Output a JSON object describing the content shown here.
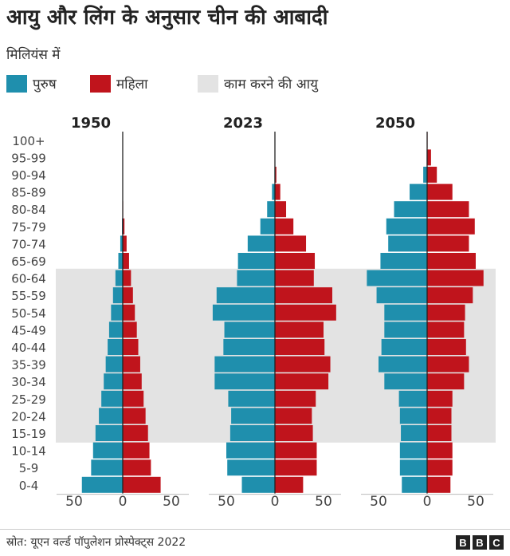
{
  "title": "आयु और लिंग के अनुसार चीन की आबादी",
  "subtitle": "मिलियंस में",
  "legend": [
    {
      "label": "पुरुष",
      "color": "#1f8fad"
    },
    {
      "label": "महिला",
      "color": "#c0141c"
    },
    {
      "label": "काम करने की आयु",
      "color": "#e3e3e3"
    }
  ],
  "source": "स्रोत: यूएन वर्ल्ड पॉपुलेशन प्रोस्पेक्ट्स 2022",
  "logo": [
    "B",
    "B",
    "C"
  ],
  "chart_data": {
    "type": "bar",
    "orientation": "population-pyramid",
    "age_groups": [
      "100+",
      "95-99",
      "90-94",
      "85-89",
      "80-84",
      "75-79",
      "70-74",
      "65-69",
      "60-64",
      "55-59",
      "50-54",
      "45-49",
      "40-44",
      "35-39",
      "30-34",
      "25-29",
      "20-24",
      "15-19",
      "10-14",
      "5-9",
      "0-4"
    ],
    "working_age_band": [
      "15-19",
      "60-64"
    ],
    "xticks": [
      "50",
      "0",
      "50"
    ],
    "panels": [
      {
        "year": "1950",
        "male": [
          0,
          0,
          0,
          0,
          0.2,
          0.8,
          2.5,
          4.5,
          7.5,
          10,
          12,
          14,
          15.5,
          17.5,
          19.5,
          22,
          24.5,
          28,
          30.5,
          32.5,
          42
        ],
        "female": [
          0,
          0,
          0,
          0.1,
          0.5,
          1.8,
          4,
          6.5,
          8.5,
          10.5,
          12.5,
          14.5,
          16,
          18,
          19.5,
          21.5,
          23.5,
          26,
          27.5,
          29,
          39
        ]
      },
      {
        "year": "2023",
        "male": [
          0,
          0,
          0.5,
          3,
          8,
          15,
          28,
          38,
          39,
          60,
          64,
          52,
          53,
          62,
          62,
          48,
          45,
          46,
          50,
          49,
          34
        ],
        "female": [
          0,
          0.3,
          1.5,
          5.5,
          11.5,
          19,
          32,
          41,
          40,
          59,
          63,
          50,
          51,
          57,
          55,
          42,
          38,
          39,
          43,
          43,
          29
        ]
      },
      {
        "year": "2050",
        "male": [
          0,
          0.5,
          4,
          18,
          34,
          42,
          40,
          48,
          62,
          52,
          44,
          44,
          47,
          50,
          44,
          29,
          28,
          27,
          28,
          28,
          26
        ],
        "female": [
          0.5,
          4,
          10,
          26,
          43,
          49,
          43,
          50,
          58,
          47,
          39,
          38,
          40,
          43,
          38,
          26,
          25,
          25,
          26,
          26,
          24
        ]
      }
    ]
  }
}
